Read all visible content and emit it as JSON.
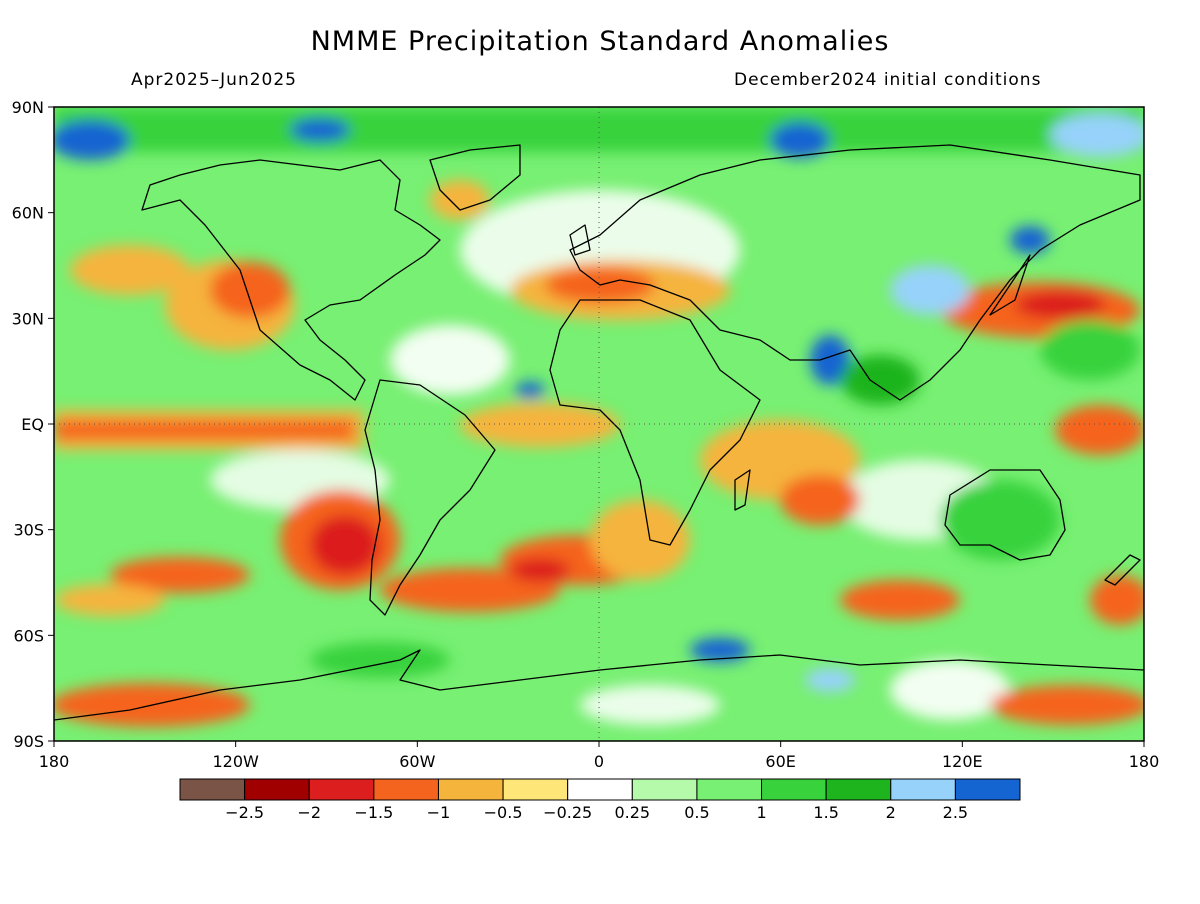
{
  "title": "NMME Precipitation Standard Anomalies",
  "subtitle_left": "Apr2025–Jun2025",
  "subtitle_right": "December2024 initial conditions",
  "map": {
    "projection": "equirectangular",
    "lon_range": [
      -180,
      180
    ],
    "lat_range": [
      -90,
      90
    ],
    "lat_labels": [
      "90N",
      "60N",
      "30N",
      "EQ",
      "30S",
      "60S",
      "90S"
    ],
    "lon_labels": [
      "180",
      "120W",
      "60W",
      "0",
      "60E",
      "120E",
      "180"
    ],
    "variable": "precipitation standardized anomaly",
    "features": [
      {
        "region": "equatorial Pacific",
        "lon": [
          -180,
          -75
        ],
        "lat": [
          -10,
          5
        ],
        "value": -1.2
      },
      {
        "region": "SE Pacific off Chile",
        "lon": [
          -100,
          -72
        ],
        "lat": [
          -45,
          -25
        ],
        "value": -2.0
      },
      {
        "region": "subtropical N Pacific",
        "lon": [
          -160,
          -110
        ],
        "lat": [
          15,
          40
        ],
        "value": -1.2
      },
      {
        "region": "western US",
        "lon": [
          -125,
          -100
        ],
        "lat": [
          30,
          45
        ],
        "value": -1.5
      },
      {
        "region": "Mediterranean / Europe",
        "lon": [
          -10,
          45
        ],
        "lat": [
          30,
          45
        ],
        "value": -1.3
      },
      {
        "region": "NW Pacific off Japan",
        "lon": [
          120,
          170
        ],
        "lat": [
          25,
          40
        ],
        "value": -1.5
      },
      {
        "region": "Indian Ocean",
        "lon": [
          40,
          100
        ],
        "lat": [
          -40,
          0
        ],
        "value": -1.0
      },
      {
        "region": "South Atlantic",
        "lon": [
          -40,
          10
        ],
        "lat": [
          -50,
          -30
        ],
        "value": -1.5
      },
      {
        "region": "Southern Ocean bands",
        "lon": [
          -180,
          180
        ],
        "lat": [
          -60,
          -45
        ],
        "value": -1.0
      },
      {
        "region": "Antarctic coast Ross Sea",
        "lon": [
          -180,
          -130
        ],
        "lat": [
          -90,
          -75
        ],
        "value": -1.5
      },
      {
        "region": "Arctic",
        "lon": [
          -180,
          180
        ],
        "lat": [
          70,
          90
        ],
        "value": 1.5
      },
      {
        "region": "northern Canada / Greenland",
        "lon": [
          -140,
          -20
        ],
        "lat": [
          55,
          80
        ],
        "value": 1.0
      },
      {
        "region": "India",
        "lon": [
          70,
          90
        ],
        "lat": [
          15,
          30
        ],
        "value": 2.5
      },
      {
        "region": "Central Asia",
        "lon": [
          80,
          110
        ],
        "lat": [
          30,
          45
        ],
        "value": 2.0
      },
      {
        "region": "Australia",
        "lon": [
          115,
          155
        ],
        "lat": [
          -40,
          -15
        ],
        "value": 1.2
      },
      {
        "region": "southern high latitudes",
        "lon": [
          -180,
          180
        ],
        "lat": [
          -75,
          -60
        ],
        "value": 1.5
      },
      {
        "region": "tropical Atlantic",
        "lon": [
          -30,
          0
        ],
        "lat": [
          3,
          10
        ],
        "value": 1.0
      }
    ]
  },
  "colorbar": {
    "colors": [
      "#7a5446",
      "#a00000",
      "#dc1e1e",
      "#f5641e",
      "#f5b43c",
      "#ffe678",
      "#ffffff",
      "#b4faaa",
      "#78f073",
      "#37d23c",
      "#1eb41e",
      "#96d2fa",
      "#1464d2"
    ],
    "labels": [
      "-2.5",
      "-2",
      "-1.5",
      "-1",
      "-0.5",
      "-0.25",
      "0.25",
      "0.5",
      "1",
      "1.5",
      "2",
      "2.5"
    ]
  }
}
